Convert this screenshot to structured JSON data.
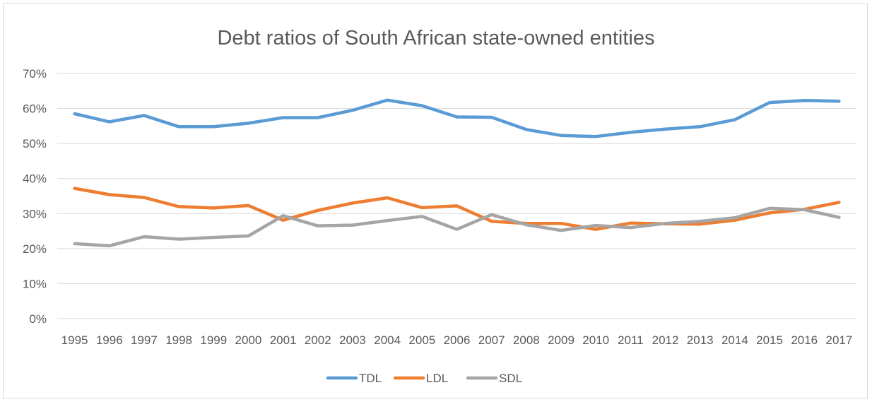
{
  "chart_data": {
    "type": "line",
    "title": "Debt ratios of South African state-owned entities",
    "xlabel": "",
    "ylabel": "",
    "categories": [
      "1995",
      "1996",
      "1997",
      "1998",
      "1999",
      "2000",
      "2001",
      "2002",
      "2003",
      "2004",
      "2005",
      "2006",
      "2007",
      "2008",
      "2009",
      "2010",
      "2011",
      "2012",
      "2013",
      "2014",
      "2015",
      "2016",
      "2017"
    ],
    "y_ticks": [
      "0%",
      "10%",
      "20%",
      "30%",
      "40%",
      "50%",
      "60%",
      "70%"
    ],
    "ylim": [
      0,
      0.7
    ],
    "grid": true,
    "legend_position": "bottom",
    "series": [
      {
        "name": "TDL",
        "color": "#5b9bd5",
        "values": [
          0.585,
          0.562,
          0.58,
          0.548,
          0.548,
          0.558,
          0.574,
          0.574,
          0.595,
          0.624,
          0.608,
          0.576,
          0.575,
          0.54,
          0.523,
          0.52,
          0.532,
          0.541,
          0.548,
          0.568,
          0.617,
          0.623,
          0.621
        ]
      },
      {
        "name": "LDL",
        "color": "#ed7d31",
        "values": [
          0.372,
          0.354,
          0.346,
          0.32,
          0.316,
          0.323,
          0.281,
          0.309,
          0.33,
          0.345,
          0.317,
          0.322,
          0.278,
          0.272,
          0.272,
          0.255,
          0.273,
          0.271,
          0.27,
          0.281,
          0.302,
          0.312,
          0.332
        ]
      },
      {
        "name": "SDL",
        "color": "#a5a5a5",
        "values": [
          0.214,
          0.208,
          0.234,
          0.227,
          0.232,
          0.236,
          0.294,
          0.265,
          0.267,
          0.28,
          0.292,
          0.255,
          0.297,
          0.268,
          0.252,
          0.266,
          0.26,
          0.272,
          0.278,
          0.288,
          0.315,
          0.311,
          0.289
        ]
      }
    ]
  }
}
